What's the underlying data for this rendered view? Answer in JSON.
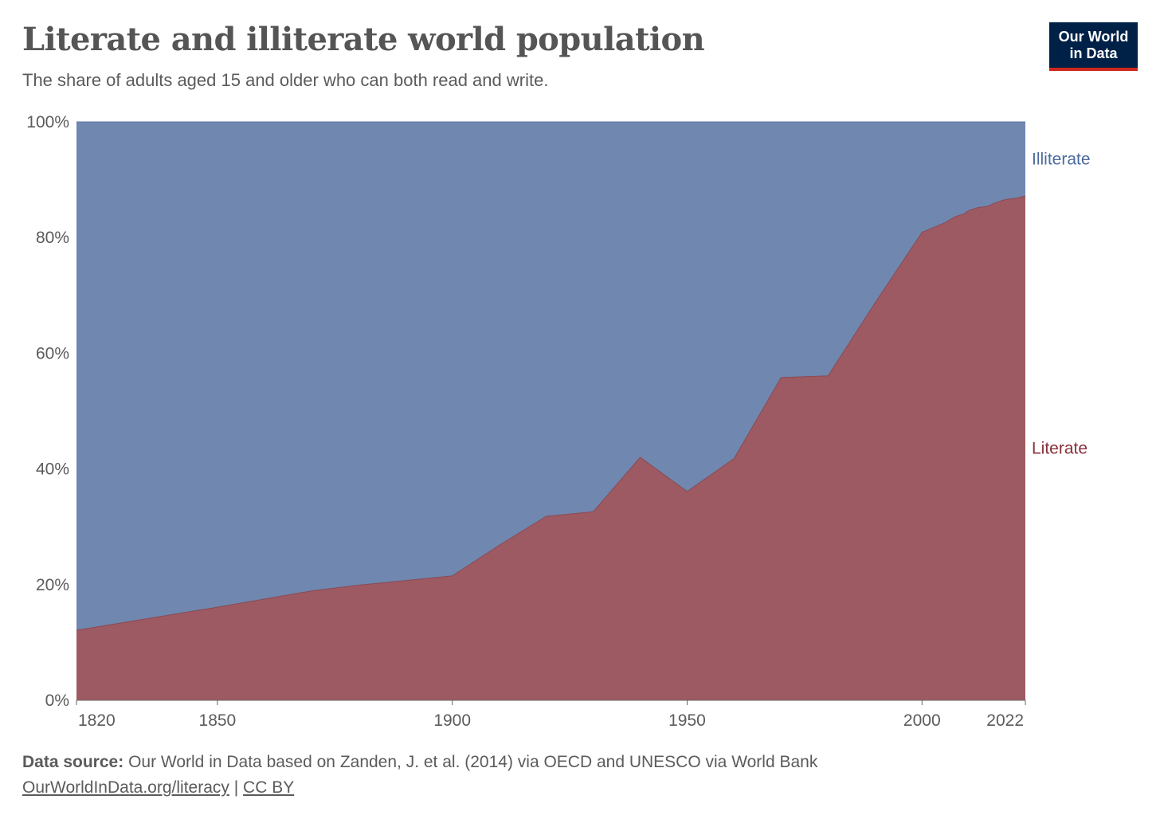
{
  "header": {
    "title": "Literate and illiterate world population",
    "subtitle": "The share of adults aged 15 and older who can both read and write.",
    "logo_line1": "Our World",
    "logo_line2": "in Data"
  },
  "footer": {
    "source_label": "Data source:",
    "source_text": "Our World in Data based on Zanden, J. et al. (2014) via OECD and UNESCO via World Bank",
    "link_text": "OurWorldInData.org/literacy",
    "separator": "|",
    "license": "CC BY"
  },
  "colors": {
    "literate": "#9e5a62",
    "illiterate": "#7087b0",
    "literate_label": "#883039",
    "illiterate_label": "#4c6a9c",
    "gridline": "#dddddd",
    "axis": "#666666"
  },
  "chart_data": {
    "type": "area",
    "stacked": true,
    "title": "Literate and illiterate world population",
    "subtitle": "The share of adults aged 15 and older who can both read and write.",
    "xlabel": "",
    "ylabel": "",
    "xlim": [
      1820,
      2022
    ],
    "ylim": [
      0,
      100
    ],
    "x_ticks": [
      1820,
      1850,
      1900,
      1950,
      2000,
      2022
    ],
    "y_ticks": [
      0,
      20,
      40,
      60,
      80,
      100
    ],
    "y_tick_labels": [
      "0%",
      "20%",
      "40%",
      "60%",
      "80%",
      "100%"
    ],
    "grid": true,
    "series": [
      {
        "name": "Literate",
        "x": [
          1820,
          1850,
          1870,
          1880,
          1890,
          1900,
          1910,
          1920,
          1930,
          1940,
          1950,
          1960,
          1970,
          1980,
          1990,
          2000,
          2005,
          2007,
          2009,
          2010,
          2012,
          2014,
          2015,
          2017,
          2018,
          2020,
          2022
        ],
        "y": [
          12.1,
          16.1,
          18.9,
          19.9,
          20.7,
          21.5,
          26.8,
          31.8,
          32.6,
          42.0,
          36.1,
          41.8,
          55.8,
          56.1,
          68.7,
          80.9,
          82.6,
          83.6,
          84.1,
          84.7,
          85.2,
          85.4,
          85.8,
          86.4,
          86.6,
          86.8,
          87.2
        ]
      },
      {
        "name": "Illiterate",
        "x": [
          1820,
          1850,
          1870,
          1880,
          1890,
          1900,
          1910,
          1920,
          1930,
          1940,
          1950,
          1960,
          1970,
          1980,
          1990,
          2000,
          2005,
          2007,
          2009,
          2010,
          2012,
          2014,
          2015,
          2017,
          2018,
          2020,
          2022
        ],
        "y": [
          87.9,
          83.9,
          81.1,
          80.1,
          79.3,
          78.5,
          73.2,
          68.2,
          67.4,
          58.0,
          63.9,
          58.2,
          44.2,
          43.9,
          31.3,
          19.1,
          17.4,
          16.4,
          15.9,
          15.3,
          14.8,
          14.6,
          14.2,
          13.6,
          13.4,
          13.2,
          12.8
        ]
      }
    ],
    "legend": [
      "Illiterate",
      "Literate"
    ],
    "legend_position": "right"
  }
}
